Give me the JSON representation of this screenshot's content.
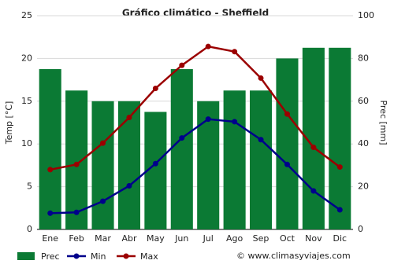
{
  "chart_data": {
    "type": "combo",
    "title": "Gráfico climático - Sheffield",
    "categories": [
      "Ene",
      "Feb",
      "Mar",
      "Abr",
      "May",
      "Jun",
      "Jul",
      "Ago",
      "Sep",
      "Oct",
      "Nov",
      "Dic"
    ],
    "ylabel": "Temp [°C]",
    "y2label": "Prec [mm]",
    "ylim": [
      0,
      25
    ],
    "yticks": [
      0,
      5,
      10,
      15,
      20,
      25
    ],
    "y2lim": [
      0,
      100
    ],
    "y2ticks": [
      0,
      20,
      40,
      60,
      80,
      100
    ],
    "grid": true,
    "legend": "bottom",
    "source": "© www.climasyviajes.com",
    "series": [
      {
        "name": "Prec",
        "type": "bar",
        "axis": "y2",
        "color": "#0b7a34",
        "values": [
          75,
          65,
          60,
          60,
          55,
          75,
          60,
          65,
          65,
          80,
          85,
          85
        ]
      },
      {
        "name": "Min",
        "type": "line",
        "color": "#00008b",
        "values": [
          1.9,
          2.0,
          3.3,
          5.1,
          7.7,
          10.7,
          12.9,
          12.6,
          10.5,
          7.6,
          4.5,
          2.3
        ]
      },
      {
        "name": "Max",
        "type": "line",
        "color": "#9b0000",
        "values": [
          7.0,
          7.6,
          10.1,
          13.1,
          16.5,
          19.2,
          21.4,
          20.8,
          17.7,
          13.5,
          9.6,
          7.3
        ]
      }
    ]
  }
}
